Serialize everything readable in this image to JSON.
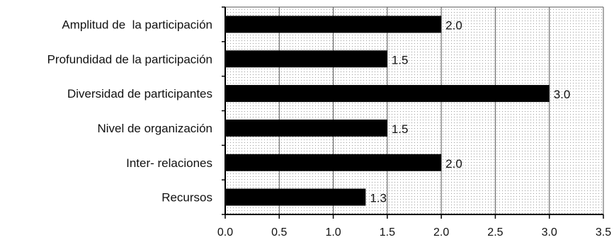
{
  "chart_data": {
    "type": "bar",
    "orientation": "horizontal",
    "categories": [
      "Amplitud de  la participación",
      "Profundidad de la participación",
      "Diversidad de participantes",
      "Nivel de organización",
      "Inter- relaciones",
      "Recursos"
    ],
    "values": [
      2.0,
      1.5,
      3.0,
      1.5,
      2.0,
      1.3
    ],
    "data_labels": [
      "2.0",
      "1.5",
      "3.0",
      "1.5",
      "2.0",
      "1.3"
    ],
    "xlim": [
      0.0,
      3.5
    ],
    "xticks": [
      0.0,
      0.5,
      1.0,
      1.5,
      2.0,
      2.5,
      3.0,
      3.5
    ],
    "xtick_labels": [
      "0.0",
      "0.5",
      "1.0",
      "1.5",
      "2.0",
      "2.5",
      "3.0",
      "3.5"
    ],
    "grid": "dotted",
    "title": "",
    "xlabel": "",
    "ylabel": "",
    "bar_color": "#000000",
    "gridline_color": "#555555"
  }
}
